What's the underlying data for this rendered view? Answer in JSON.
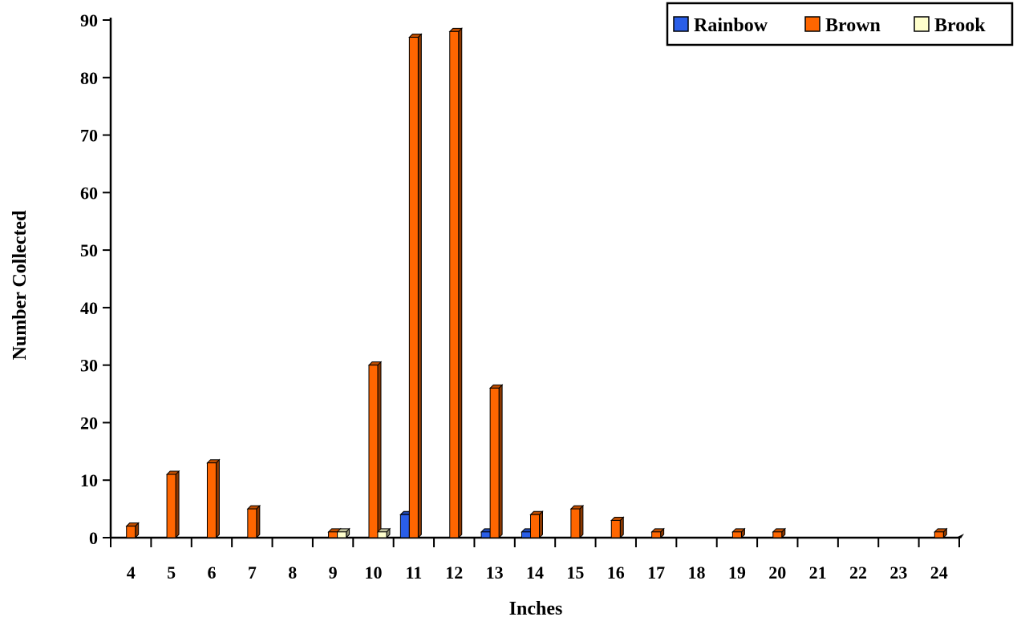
{
  "chart_data": {
    "type": "bar",
    "xlabel": "Inches",
    "ylabel": "Number Collected",
    "ylim": [
      0,
      90
    ],
    "y_ticks": [
      0,
      10,
      20,
      30,
      40,
      50,
      60,
      70,
      80,
      90
    ],
    "grid": false,
    "legend_position": "top-right",
    "categories": [
      "4",
      "5",
      "6",
      "7",
      "8",
      "9",
      "10",
      "11",
      "12",
      "13",
      "14",
      "15",
      "16",
      "17",
      "18",
      "19",
      "20",
      "21",
      "22",
      "23",
      "24"
    ],
    "series": [
      {
        "name": "Rainbow",
        "color": "#2a5ee8",
        "values": [
          0,
          0,
          0,
          0,
          0,
          0,
          0,
          4,
          0,
          1,
          1,
          0,
          0,
          0,
          0,
          0,
          0,
          0,
          0,
          0,
          0
        ]
      },
      {
        "name": "Brown",
        "color": "#ff6600",
        "values": [
          2,
          11,
          13,
          5,
          0,
          1,
          30,
          87,
          88,
          26,
          4,
          5,
          3,
          1,
          0,
          1,
          1,
          0,
          0,
          0,
          1
        ]
      },
      {
        "name": "Brook",
        "color": "#ffffcc",
        "values": [
          0,
          0,
          0,
          0,
          0,
          1,
          1,
          0,
          0,
          0,
          0,
          0,
          0,
          0,
          0,
          0,
          0,
          0,
          0,
          0,
          0
        ]
      }
    ]
  }
}
